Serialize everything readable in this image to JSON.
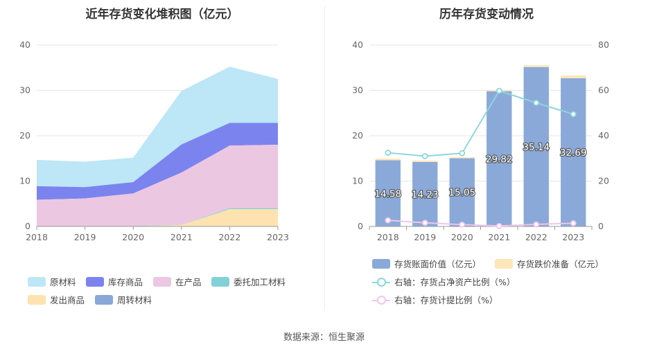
{
  "source": "数据来源：恒生聚源",
  "chart_data": [
    {
      "type": "area",
      "stacked": true,
      "title": "近年存货变化堆积图（亿元）",
      "categories": [
        "2018",
        "2019",
        "2020",
        "2021",
        "2022",
        "2023"
      ],
      "ylim": [
        0,
        40
      ],
      "yticks": [
        "0",
        "10",
        "20",
        "30",
        "40"
      ],
      "grid": true,
      "legend_position": "bottom",
      "series": [
        {
          "name": "原材料",
          "color": "#bde6f7",
          "values": [
            5.8,
            5.6,
            5.4,
            11.8,
            12.4,
            9.7
          ]
        },
        {
          "name": "库存商品",
          "color": "#7b84ee",
          "values": [
            3.0,
            2.5,
            2.5,
            6.2,
            5.0,
            4.8
          ]
        },
        {
          "name": "在产品",
          "color": "#ecc7e1",
          "values": [
            5.8,
            6.1,
            7.2,
            11.5,
            13.8,
            14.0
          ]
        },
        {
          "name": "委托加工材料",
          "color": "#80d2d8",
          "values": [
            0.05,
            0.05,
            0.05,
            0.05,
            0.2,
            0.2
          ]
        },
        {
          "name": "发出商品",
          "color": "#fee3b0",
          "values": [
            0,
            0,
            0,
            0.3,
            3.8,
            3.8
          ]
        },
        {
          "name": "周转材料",
          "color": "#8ba7d8",
          "values": [
            0.02,
            0.02,
            0.02,
            0.02,
            0.02,
            0.02
          ]
        }
      ]
    },
    {
      "type": "bar",
      "title": "历年存货变动情况",
      "categories": [
        "2018",
        "2019",
        "2020",
        "2021",
        "2022",
        "2023"
      ],
      "ylim": [
        0,
        40
      ],
      "yticks": [
        "0",
        "10",
        "20",
        "30",
        "40"
      ],
      "y2lim": [
        0,
        80
      ],
      "y2ticks": [
        "0",
        "20",
        "40",
        "60",
        "80"
      ],
      "grid": true,
      "legend_position": "bottom",
      "bars": [
        {
          "name": "存货账面价值（亿元）",
          "color": "#8aa9d9",
          "values": [
            14.58,
            14.23,
            15.05,
            29.82,
            35.14,
            32.69
          ],
          "labels": [
            "14.58",
            "14.23",
            "15.05",
            "29.82",
            "35.14",
            "32.69"
          ]
        },
        {
          "name": "存货跌价准备（亿元）",
          "color": "#fde6b8",
          "values": [
            0.4,
            0.3,
            0.2,
            0.3,
            0.4,
            0.6
          ]
        }
      ],
      "lines": [
        {
          "name": "右轴：存货占净资产比例（%）",
          "color": "#8fd5db",
          "values": [
            32.5,
            31.0,
            32.3,
            59.8,
            54.5,
            49.5
          ]
        },
        {
          "name": "右轴：存货计提比例（%）",
          "color": "#f0c6ea",
          "values": [
            2.7,
            1.6,
            0.8,
            0.2,
            0.9,
            1.4
          ]
        }
      ]
    }
  ]
}
